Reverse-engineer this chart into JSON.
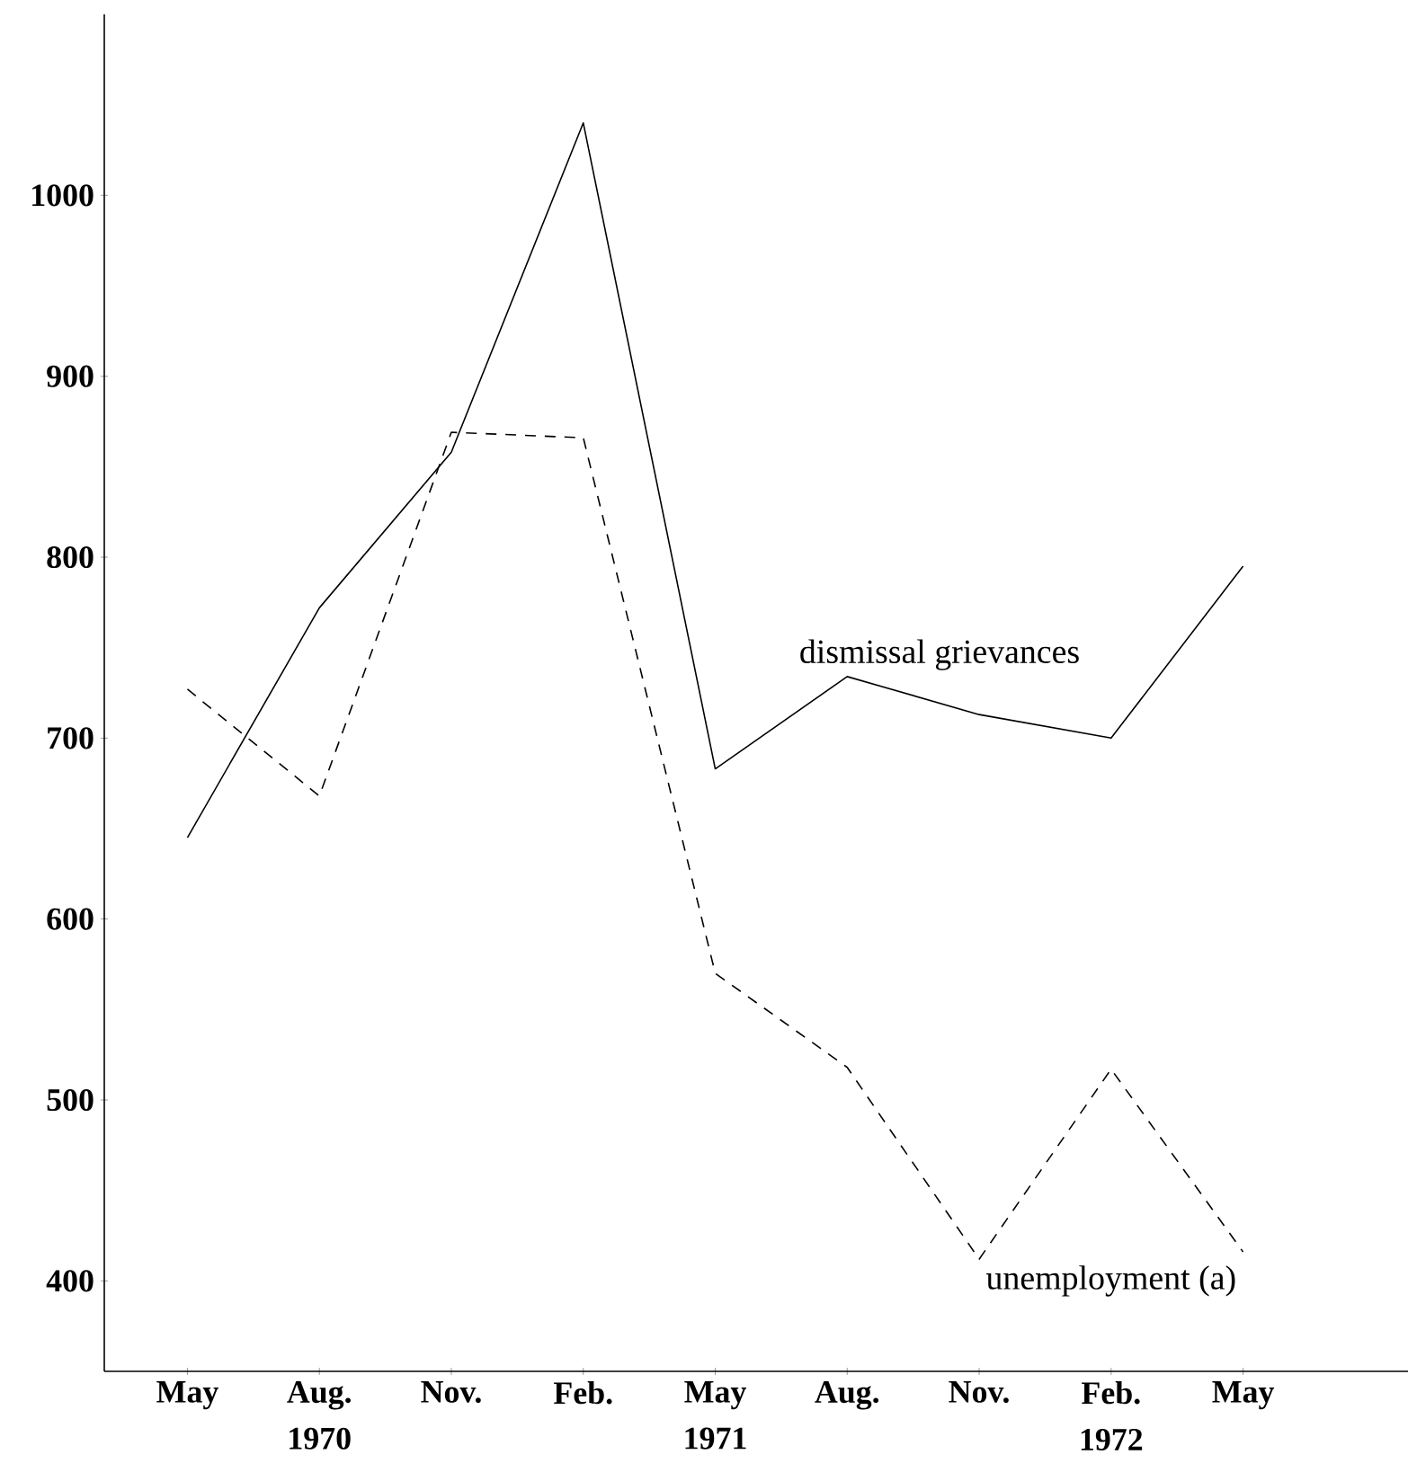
{
  "chart_data": {
    "type": "line",
    "categories": [
      "May",
      "Aug. 1970",
      "Nov.",
      "Feb.",
      "May 1971",
      "Aug.",
      "Nov.",
      "Feb. 1972",
      "May"
    ],
    "series": [
      {
        "name": "dismissal grievances",
        "color": "#000000",
        "line_style": "solid",
        "values": [
          645,
          772,
          858,
          1040,
          683,
          734,
          713,
          700,
          795
        ]
      },
      {
        "name": "unemployment (a)",
        "color": "#000000",
        "line_style": "dashed",
        "values": [
          727,
          668,
          869,
          866,
          570,
          518,
          412,
          517,
          416
        ]
      }
    ],
    "ylim": [
      350,
      1100
    ],
    "yticks": [
      400,
      500,
      600,
      700,
      800,
      900,
      1000
    ],
    "grid": false,
    "legend": false,
    "marker": "none"
  }
}
